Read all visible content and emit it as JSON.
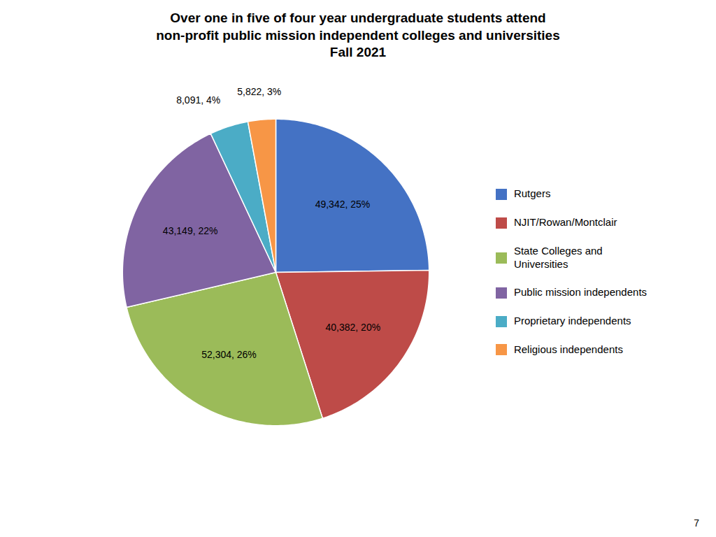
{
  "chart_data": {
    "type": "pie",
    "title": "Over one in five of four year undergraduate students attend\nnon-profit public mission independent colleges and universities\nFall 2021",
    "categories": [
      "Rutgers",
      "NJIT/Rowan/Montclair",
      "State Colleges and\nUniversities",
      "Public mission independents",
      "Proprietary independents",
      "Religious independents"
    ],
    "values": [
      49342,
      40382,
      52304,
      43149,
      8091,
      5822
    ],
    "percentages": [
      25,
      20,
      26,
      22,
      4,
      3
    ],
    "value_labels": [
      "49,342, 25%",
      "40,382, 20%",
      "52,304, 26%",
      "43,149, 22%",
      "8,091, 4%",
      "5,822, 3%"
    ],
    "colors": [
      "#4472C4",
      "#BE4B48",
      "#9BBB59",
      "#8064A2",
      "#4BACC6",
      "#F79646"
    ],
    "data_labels": true,
    "legend": "right",
    "annotations": [
      "7"
    ]
  }
}
